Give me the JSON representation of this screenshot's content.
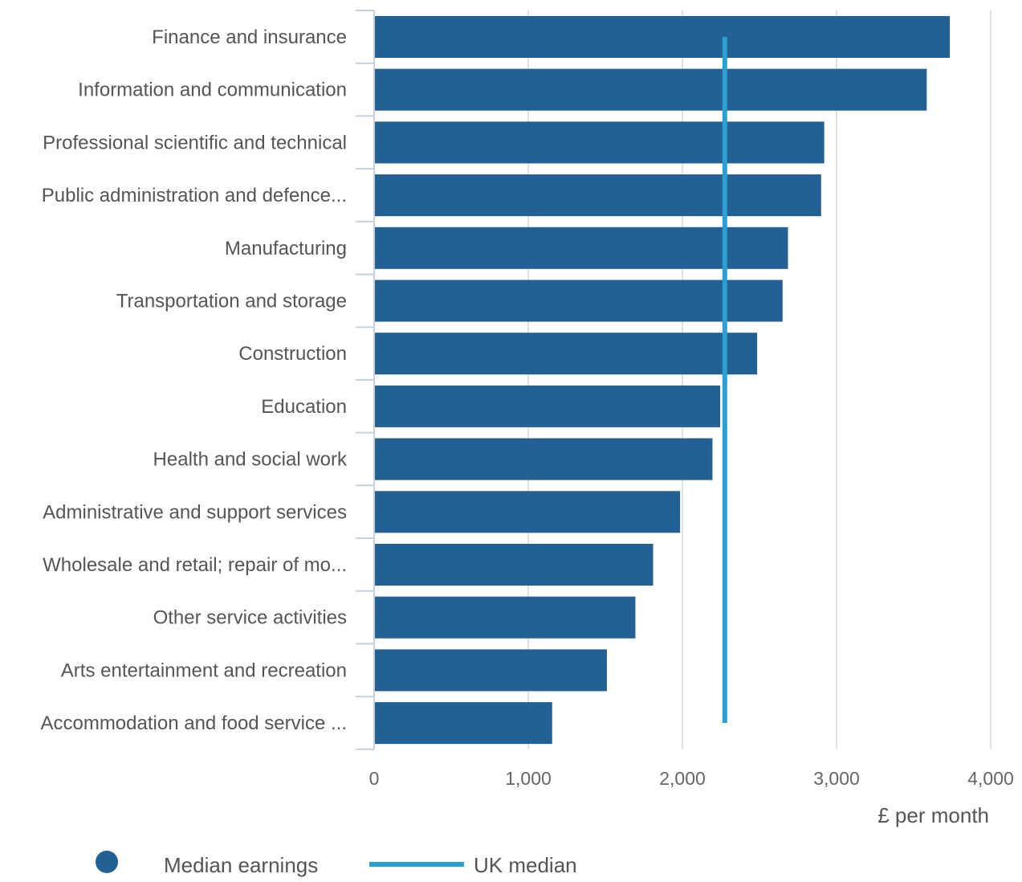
{
  "chart_data": {
    "type": "bar",
    "orientation": "horizontal",
    "categories": [
      "Finance and insurance",
      "Information and communication",
      "Professional scientific and technical",
      "Public administration and defence...",
      "Manufacturing",
      "Transportation and storage",
      "Construction",
      "Education",
      "Health and social work",
      "Administrative and support services",
      "Wholesale and retail; repair of mo...",
      "Other service activities",
      "Arts entertainment and recreation",
      "Accommodation and food service ..."
    ],
    "series": [
      {
        "name": "Median earnings",
        "values": [
          3735,
          3585,
          2920,
          2900,
          2685,
          2650,
          2485,
          2245,
          2195,
          1985,
          1810,
          1695,
          1510,
          1155
        ]
      }
    ],
    "reference_line": {
      "name": "UK median",
      "value": 2275
    },
    "xlim": [
      0,
      4000
    ],
    "xticks": [
      0,
      1000,
      2000,
      3000,
      4000
    ],
    "xtick_labels": [
      "0",
      "1,000",
      "2,000",
      "3,000",
      "4,000"
    ],
    "xlabel": "£ per month",
    "title": "",
    "ylabel": "",
    "grid": "vertical",
    "legend_position": "bottom-left",
    "colors": {
      "bar": "#236094",
      "median_line": "#2aa0d4",
      "grid": "#e2e2e2",
      "axis": "#c6d0e0"
    }
  }
}
